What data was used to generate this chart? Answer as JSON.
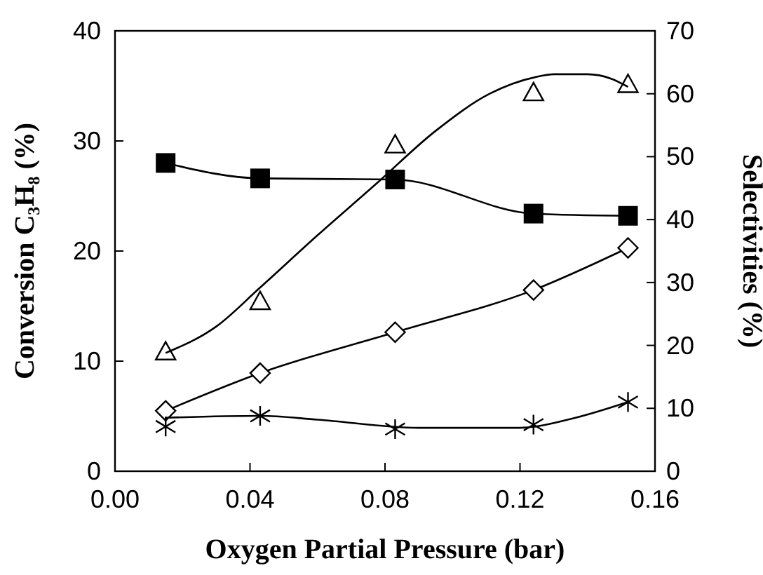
{
  "chart_data": {
    "type": "line",
    "xlabel": "Oxygen Partial Pressure (bar)",
    "ylabel": "Conversion C₃H₈ (%)",
    "y2label": "Selectivities (%)",
    "xlim": [
      0,
      0.16
    ],
    "xticks": [
      {
        "value": 0,
        "label": "0.00"
      },
      {
        "value": 0.04,
        "label": "0.04"
      },
      {
        "value": 0.08,
        "label": "0.08"
      },
      {
        "value": 0.12,
        "label": "0.12"
      },
      {
        "value": 0.16,
        "label": "0.16"
      }
    ],
    "ylim": [
      0,
      40
    ],
    "yticks": [
      0,
      10,
      20,
      30,
      40
    ],
    "y2lim": [
      0,
      70
    ],
    "y2ticks": [
      0,
      10,
      20,
      30,
      40,
      50,
      60,
      70
    ],
    "grid": false,
    "line_style": "solid",
    "series": [
      {
        "color": "#000000",
        "marker": "square",
        "x": [
          0.015,
          0.043,
          0.083,
          0.124,
          0.152
        ],
        "values": [
          28.0,
          26.6,
          26.5,
          23.4,
          23.2
        ]
      },
      {
        "type": "scatter",
        "axis": "y2",
        "color": "#000000",
        "marker": "triangle",
        "x": [
          0.015,
          0.043,
          0.083,
          0.124,
          0.152
        ],
        "values": [
          19.0,
          27.0,
          51.9,
          60.2,
          61.5
        ]
      },
      {
        "axis": "y2",
        "color": "#000000",
        "marker": "none",
        "x": [
          0.015,
          0.03,
          0.043,
          0.06,
          0.077,
          0.095,
          0.111,
          0.125,
          0.13,
          0.14,
          0.147,
          0.152
        ],
        "values": [
          18.8,
          23,
          29.2,
          37.5,
          45.5,
          54.1,
          60.0,
          62.7,
          63.1,
          63.1,
          62.4,
          61.1
        ]
      },
      {
        "axis": "y2",
        "color": "#000000",
        "marker": "diamond",
        "x": [
          0.015,
          0.043,
          0.083,
          0.124,
          0.152
        ],
        "values": [
          9.6,
          15.6,
          22.1,
          28.8,
          35.5
        ]
      },
      {
        "type": "scatter",
        "axis": "y2",
        "color": "#000000",
        "marker": "cross",
        "x": [
          0.015,
          0.043,
          0.083,
          0.124,
          0.152
        ],
        "values": [
          7.1,
          8.8,
          6.7,
          7.4,
          11.0
        ]
      },
      {
        "axis": "y2",
        "color": "#000000",
        "marker": "none",
        "x": [
          0.015,
          0.043,
          0.06,
          0.09,
          0.12,
          0.135,
          0.152
        ],
        "values": [
          8.5,
          8.8,
          8.2,
          6.9,
          6.9,
          8.3,
          11.0
        ]
      }
    ]
  }
}
